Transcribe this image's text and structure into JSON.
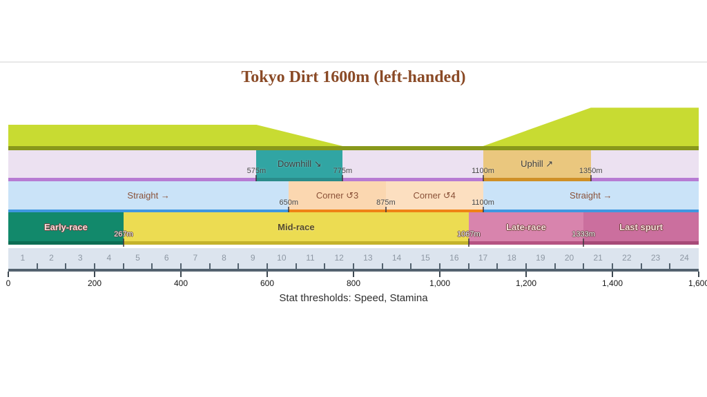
{
  "page": {
    "title": "Tokyo Dirt 1600m (left-handed)",
    "caption": "Stat thresholds: Speed, Stamina"
  },
  "chart_data": {
    "type": "track-course-profile",
    "title": "Tokyo Dirt 1600m (left-handed)",
    "surface": "Dirt",
    "direction": "left-handed",
    "track_length_m": 1600,
    "stat_thresholds": [
      "Speed",
      "Stamina"
    ],
    "elevation_profile": {
      "fill_color": "#c8db32",
      "baseline_color": "#88981b",
      "points": [
        [
          0,
          0.5
        ],
        [
          575,
          0.5
        ],
        [
          775,
          0
        ],
        [
          1100,
          0
        ],
        [
          1350,
          0.9
        ],
        [
          1600,
          0.9
        ]
      ]
    },
    "slope_band": {
      "base_color": "#ece1f1",
      "base_border_color": "#b77bd3",
      "segments": [
        {
          "label": "Downhill ↘",
          "from_m": 575,
          "to_m": 775,
          "color": "#31a5a3",
          "border_color": "#2a8c8b"
        },
        {
          "label": "Uphill ↗",
          "from_m": 1100,
          "to_m": 1350,
          "color": "#eac77e",
          "border_color": "#cf9027"
        }
      ],
      "markers": [
        "575m",
        "775m",
        "1100m",
        "1350m"
      ],
      "markers_m": [
        575,
        775,
        1100,
        1350
      ]
    },
    "course_band": {
      "label_color": "#8a5138",
      "segments": [
        {
          "label": "Straight →",
          "from_m": 0,
          "to_m": 650,
          "color": "#cae3f8",
          "border_color": "#3f97e0"
        },
        {
          "label": "Corner ↺3",
          "from_m": 650,
          "to_m": 875,
          "color": "#fbd7b0",
          "border_color": "#ef8316"
        },
        {
          "label": "Corner ↺4",
          "from_m": 875,
          "to_m": 1100,
          "color": "#fcdfc0",
          "border_color": "#ef8316"
        },
        {
          "label": "Straight →",
          "from_m": 1100,
          "to_m": 1600,
          "color": "#cae3f8",
          "border_color": "#3f97e0"
        }
      ],
      "markers": [
        "650m",
        "875m",
        "1100m"
      ],
      "markers_m": [
        650,
        875,
        1100
      ]
    },
    "phase_band": {
      "segments": [
        {
          "label": "Early-race",
          "from_m": 0,
          "to_m": 267,
          "color": "#12896b",
          "border_color": "#0c6e54",
          "text_style": "light"
        },
        {
          "label": "Mid-race",
          "from_m": 267,
          "to_m": 1067,
          "color": "#ecdc52",
          "border_color": "#c4b32c",
          "text_style": "dark"
        },
        {
          "label": "Late-race",
          "from_m": 1067,
          "to_m": 1333,
          "color": "#d884ad",
          "border_color": "#b55382",
          "text_style": "light"
        },
        {
          "label": "Last spurt",
          "from_m": 1333,
          "to_m": 1600,
          "color": "#cb6f9e",
          "border_color": "#a74a78",
          "text_style": "light"
        }
      ],
      "markers": [
        "267m",
        "1067m",
        "1333m"
      ],
      "markers_m": [
        267,
        1067,
        1333
      ]
    },
    "ruler": {
      "sections": [
        "1",
        "2",
        "3",
        "4",
        "5",
        "6",
        "7",
        "8",
        "9",
        "10",
        "11",
        "12",
        "13",
        "14",
        "15",
        "16",
        "17",
        "18",
        "19",
        "20",
        "21",
        "22",
        "23",
        "24"
      ],
      "bg_color": "#dce4ee",
      "line_color": "#53626f",
      "major_tick_color": "#3d4751",
      "number_color": "#8d97a3",
      "axis_labels": [
        "0",
        "200",
        "400",
        "600",
        "800",
        "1,000",
        "1,200",
        "1,400",
        "1,600"
      ],
      "axis_m": [
        0,
        200,
        400,
        600,
        800,
        1000,
        1200,
        1400,
        1600
      ]
    }
  }
}
